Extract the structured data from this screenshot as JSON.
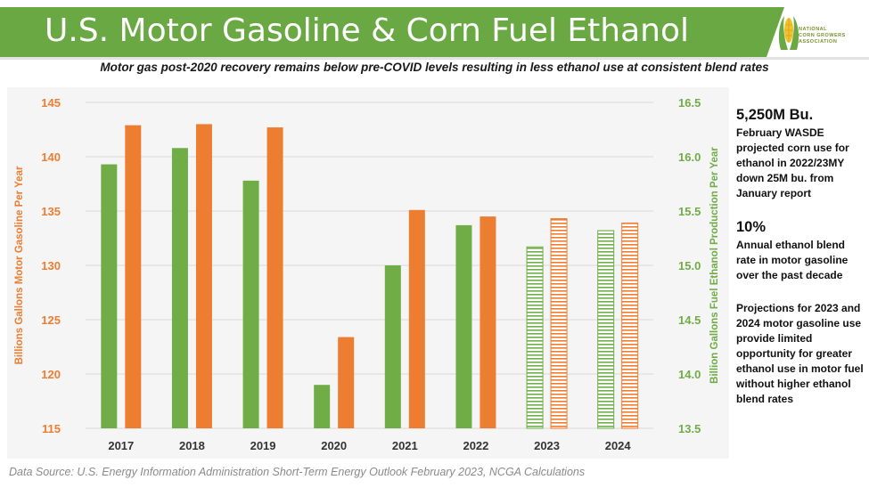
{
  "header": {
    "title": "U.S. Motor Gasoline & Corn Fuel Ethanol",
    "subtitle": "Motor gas post-2020 recovery remains below pre-COVID levels resulting in less ethanol use at consistent blend rates",
    "logo_text": [
      "NATIONAL",
      "CORN GROWERS",
      "ASSOCIATION"
    ]
  },
  "colors": {
    "gasoline": "#ed7d31",
    "ethanol": "#70ad47",
    "banner": "#6aa843"
  },
  "chart_data": {
    "type": "bar",
    "categories": [
      "2017",
      "2018",
      "2019",
      "2020",
      "2021",
      "2022",
      "2023",
      "2024"
    ],
    "series": [
      {
        "name": "Fuel Ethanol Production",
        "axis": "right",
        "values": [
          15.93,
          16.08,
          15.78,
          13.9,
          15.0,
          15.37,
          15.17,
          15.32
        ],
        "projected": [
          false,
          false,
          false,
          false,
          false,
          false,
          true,
          true
        ]
      },
      {
        "name": "Motor Gasoline",
        "axis": "left",
        "values": [
          142.9,
          143.0,
          142.7,
          123.4,
          135.1,
          134.5,
          134.3,
          133.9
        ],
        "projected": [
          false,
          false,
          false,
          false,
          false,
          false,
          true,
          true
        ]
      }
    ],
    "ylabel": "Billions Gallons Motor Gasoline Per Year",
    "ylim": [
      115,
      145
    ],
    "yticks": [
      "115",
      "120",
      "125",
      "130",
      "135",
      "140",
      "145"
    ],
    "y2label": "Billion Gallons Fuel Ethanol Production Per Year",
    "y2lim": [
      13.5,
      16.5
    ],
    "y2ticks": [
      "13.5",
      "14.0",
      "14.5",
      "15.0",
      "15.5",
      "16.0",
      "16.5"
    ],
    "grid": true
  },
  "sidebar": {
    "stat1_value": "5,250M Bu.",
    "stat1_text": "February WASDE projected corn use for ethanol in 2022/23MY down 25M bu. from January report",
    "stat2_value": "10%",
    "stat2_text": "Annual ethanol blend rate in motor gasoline over the past decade",
    "note": "Projections for 2023 and 2024 motor gasoline use provide limited opportunity for greater ethanol use in motor fuel without higher ethanol blend rates"
  },
  "footer": {
    "source": "Data Source: U.S. Energy Information Administration Short-Term Energy Outlook February 2023, NCGA Calculations"
  }
}
